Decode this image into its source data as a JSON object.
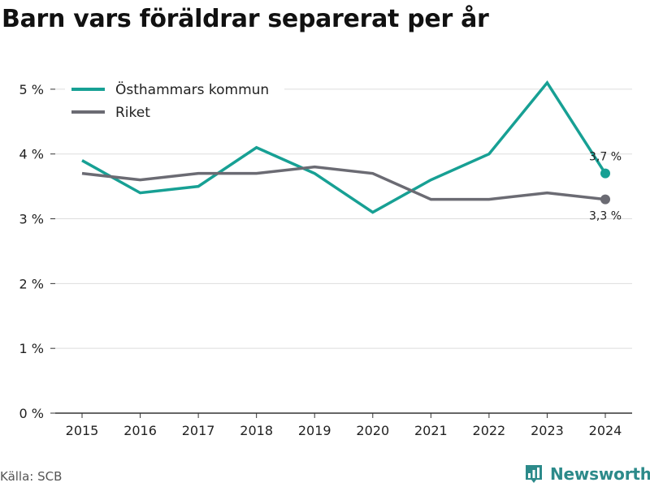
{
  "title": "Barn vars föräldrar separerat per år",
  "source": "Källa: SCB",
  "brand": {
    "name": "Newsworthy",
    "icon": "bar-chart-icon"
  },
  "colors": {
    "series_0": "#17a094",
    "series_1": "#6b6b73",
    "grid": "#dddddd",
    "axis": "#333333"
  },
  "chart_data": {
    "type": "line",
    "x": [
      "2015",
      "2016",
      "2017",
      "2018",
      "2019",
      "2020",
      "2021",
      "2022",
      "2023",
      "2024"
    ],
    "series": [
      {
        "name": "Östhammars kommun",
        "values": [
          3.9,
          3.4,
          3.5,
          4.1,
          3.7,
          3.1,
          3.6,
          4.0,
          5.1,
          3.7
        ],
        "end_label": "3,7 %"
      },
      {
        "name": "Riket",
        "values": [
          3.7,
          3.6,
          3.7,
          3.7,
          3.8,
          3.7,
          3.3,
          3.3,
          3.4,
          3.3
        ],
        "end_label": "3,3 %"
      }
    ],
    "y_ticks": [
      {
        "value": 0,
        "label": "0 %"
      },
      {
        "value": 1,
        "label": "1 %"
      },
      {
        "value": 2,
        "label": "2 %"
      },
      {
        "value": 3,
        "label": "3 %"
      },
      {
        "value": 4,
        "label": "4 %"
      },
      {
        "value": 5,
        "label": "5 %"
      }
    ],
    "ylim": [
      0,
      5.5
    ],
    "grid": true,
    "legend_position": "top-left"
  }
}
